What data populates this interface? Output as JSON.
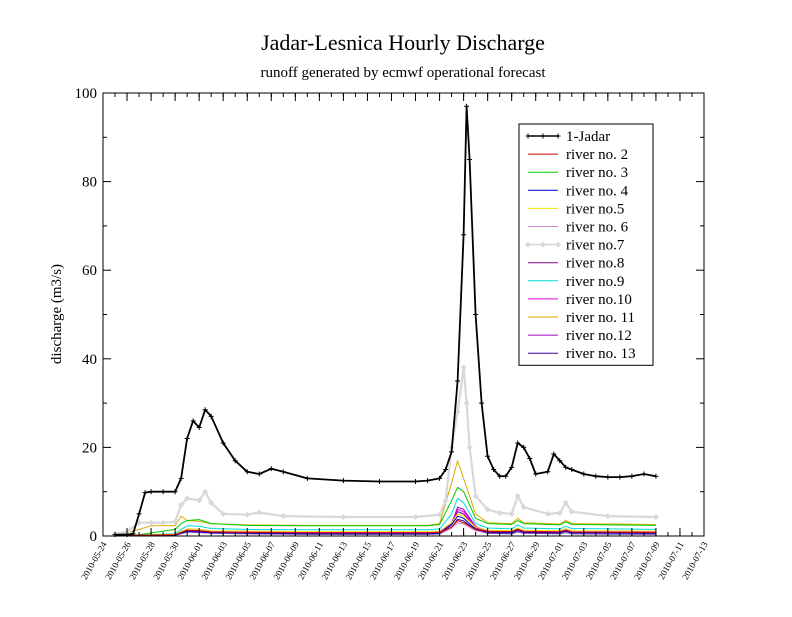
{
  "chart_data": {
    "type": "line",
    "title": "Jadar-Lesnica Hourly Discharge",
    "subtitle": "runoff generated by ecmwf operational forecast",
    "xlabel": "",
    "ylabel": "discharge (m3/s)",
    "xlim": [
      "2010-05-24",
      "2010-07-13"
    ],
    "ylim": [
      0,
      100
    ],
    "yticks": [
      0,
      20,
      40,
      60,
      80,
      100
    ],
    "xtick_labels": [
      "2010-05-24",
      "2010-05-26",
      "2010-05-28",
      "2010-05-30",
      "2010-06-01",
      "2010-06-03",
      "2010-06-05",
      "2010-06-07",
      "2010-06-09",
      "2010-06-11",
      "2010-06-13",
      "2010-06-15",
      "2010-06-17",
      "2010-06-19",
      "2010-06-21",
      "2010-06-23",
      "2010-06-25",
      "2010-06-27",
      "2010-06-29",
      "2010-07-01",
      "2010-07-03",
      "2010-07-05",
      "2010-07-07",
      "2010-07-09",
      "2010-07-11",
      "2010-07-13"
    ],
    "grid": false,
    "legend_position": "top-right",
    "series": [
      {
        "name": "1-Jadar",
        "color": "#000000",
        "marker": "plus",
        "x": [
          "2010-05-25",
          "2010-05-26",
          "2010-05-26 12:00",
          "2010-05-27",
          "2010-05-27 12:00",
          "2010-05-28",
          "2010-05-29",
          "2010-05-30",
          "2010-05-30 12:00",
          "2010-05-31",
          "2010-05-31 12:00",
          "2010-06-01",
          "2010-06-01 12:00",
          "2010-06-02",
          "2010-06-03",
          "2010-06-04",
          "2010-06-05",
          "2010-06-06",
          "2010-06-07",
          "2010-06-08",
          "2010-06-10",
          "2010-06-13",
          "2010-06-16",
          "2010-06-19",
          "2010-06-20",
          "2010-06-21",
          "2010-06-21 12:00",
          "2010-06-22",
          "2010-06-22 12:00",
          "2010-06-23",
          "2010-06-23 06:00",
          "2010-06-23 12:00",
          "2010-06-24",
          "2010-06-24 12:00",
          "2010-06-25",
          "2010-06-25 12:00",
          "2010-06-26",
          "2010-06-26 12:00",
          "2010-06-27",
          "2010-06-27 12:00",
          "2010-06-28",
          "2010-06-28 12:00",
          "2010-06-29",
          "2010-06-30",
          "2010-06-30 12:00",
          "2010-07-01",
          "2010-07-01 12:00",
          "2010-07-02",
          "2010-07-03",
          "2010-07-04",
          "2010-07-05",
          "2010-07-06",
          "2010-07-07",
          "2010-07-08",
          "2010-07-09"
        ],
        "y": [
          0.3,
          0.3,
          0.5,
          5,
          9.8,
          10,
          10,
          10,
          13,
          22,
          26,
          24.5,
          28.5,
          27,
          21,
          17,
          14.5,
          14,
          15.2,
          14.5,
          13,
          12.5,
          12.3,
          12.3,
          12.5,
          13,
          15,
          19,
          35,
          68,
          97,
          85,
          50,
          30,
          18,
          15,
          13.5,
          13.5,
          15.5,
          21,
          20,
          17.5,
          14,
          14.5,
          18.5,
          17,
          15.5,
          15,
          14,
          13.5,
          13.3,
          13.3,
          13.5,
          14,
          13.5
        ]
      },
      {
        "name": "river no. 2",
        "color": "#cc0000",
        "marker": "none",
        "x": [
          "2010-05-25",
          "2010-05-27",
          "2010-05-30",
          "2010-05-30 12:00",
          "2010-05-31",
          "2010-06-01",
          "2010-06-02",
          "2010-06-05",
          "2010-06-10",
          "2010-06-20",
          "2010-06-21",
          "2010-06-22",
          "2010-06-22 12:00",
          "2010-06-23",
          "2010-06-24",
          "2010-06-25",
          "2010-06-27",
          "2010-06-27 12:00",
          "2010-06-28",
          "2010-07-01",
          "2010-07-01 12:00",
          "2010-07-02",
          "2010-07-09"
        ],
        "y": [
          0,
          0.2,
          0.3,
          0.8,
          1.3,
          1.2,
          0.9,
          0.8,
          0.7,
          0.7,
          0.8,
          2,
          3.5,
          3,
          1.5,
          1,
          1,
          1.5,
          1,
          0.9,
          1.3,
          0.9,
          0.8
        ]
      },
      {
        "name": "river no. 3",
        "color": "#00cc00",
        "marker": "none",
        "x": [
          "2010-05-25",
          "2010-05-27",
          "2010-05-30",
          "2010-05-30 12:00",
          "2010-05-31",
          "2010-06-01",
          "2010-06-02",
          "2010-06-05",
          "2010-06-10",
          "2010-06-20",
          "2010-06-21",
          "2010-06-22",
          "2010-06-22 12:00",
          "2010-06-23",
          "2010-06-24",
          "2010-06-25",
          "2010-06-27",
          "2010-06-27 12:00",
          "2010-06-28",
          "2010-07-01",
          "2010-07-01 12:00",
          "2010-07-02",
          "2010-07-09"
        ],
        "y": [
          0,
          0.3,
          1.5,
          2.8,
          3.5,
          3.7,
          2.8,
          2.4,
          2.3,
          2.3,
          2.6,
          8,
          11,
          10,
          4,
          2.8,
          2.6,
          3.5,
          2.8,
          2.5,
          3.2,
          2.6,
          2.4
        ]
      },
      {
        "name": "river no. 4",
        "color": "#0000cc",
        "marker": "none",
        "x": [
          "2010-05-25",
          "2010-05-27",
          "2010-05-30",
          "2010-05-30 12:00",
          "2010-05-31",
          "2010-06-01",
          "2010-06-02",
          "2010-06-05",
          "2010-06-10",
          "2010-06-20",
          "2010-06-21",
          "2010-06-22",
          "2010-06-22 12:00",
          "2010-06-23",
          "2010-06-24",
          "2010-06-25",
          "2010-06-27",
          "2010-06-27 12:00",
          "2010-06-28",
          "2010-07-01",
          "2010-07-01 12:00",
          "2010-07-02",
          "2010-07-09"
        ],
        "y": [
          0,
          0.1,
          0.2,
          0.6,
          1,
          0.9,
          0.7,
          0.6,
          0.5,
          0.5,
          0.6,
          2.5,
          4.5,
          4,
          1.5,
          0.8,
          0.7,
          1.2,
          0.8,
          0.7,
          1.1,
          0.7,
          0.6
        ]
      },
      {
        "name": "river no.5",
        "color": "#f0e000",
        "marker": "none",
        "x": [
          "2010-05-25",
          "2010-05-27",
          "2010-05-30",
          "2010-05-30 12:00",
          "2010-05-31",
          "2010-06-01",
          "2010-06-02",
          "2010-06-05",
          "2010-06-10",
          "2010-06-20",
          "2010-06-21",
          "2010-06-22",
          "2010-06-22 12:00",
          "2010-06-23",
          "2010-06-24",
          "2010-06-25",
          "2010-06-27",
          "2010-06-27 12:00",
          "2010-06-28",
          "2010-07-01",
          "2010-07-01 12:00",
          "2010-07-02",
          "2010-07-09"
        ],
        "y": [
          0,
          0.2,
          0.4,
          1,
          1.6,
          1.5,
          1.2,
          1.1,
          1,
          1,
          1.1,
          3,
          5,
          4.5,
          2,
          1.3,
          1.2,
          1.8,
          1.3,
          1.2,
          1.6,
          1.2,
          1.1
        ]
      },
      {
        "name": "river no. 6",
        "color": "#cc88cc",
        "marker": "none",
        "x": [
          "2010-05-25",
          "2010-05-27",
          "2010-05-30",
          "2010-05-30 12:00",
          "2010-05-31",
          "2010-06-01",
          "2010-06-02",
          "2010-06-05",
          "2010-06-10",
          "2010-06-20",
          "2010-06-21",
          "2010-06-22",
          "2010-06-22 12:00",
          "2010-06-23",
          "2010-06-24",
          "2010-06-25",
          "2010-06-27",
          "2010-06-27 12:00",
          "2010-06-28",
          "2010-07-01",
          "2010-07-01 12:00",
          "2010-07-02",
          "2010-07-09"
        ],
        "y": [
          0,
          0.1,
          0.2,
          0.5,
          0.9,
          0.8,
          0.6,
          0.5,
          0.5,
          0.5,
          0.6,
          1.8,
          3,
          2.7,
          1.2,
          0.7,
          0.6,
          1,
          0.7,
          0.6,
          0.9,
          0.6,
          0.5
        ]
      },
      {
        "name": "river no.7",
        "color": "#d8d8d8",
        "marker": "diamond",
        "x": [
          "2010-05-25",
          "2010-05-26",
          "2010-05-27",
          "2010-05-28",
          "2010-05-29",
          "2010-05-30",
          "2010-05-30 12:00",
          "2010-05-31",
          "2010-06-01",
          "2010-06-01 12:00",
          "2010-06-02",
          "2010-06-03",
          "2010-06-05",
          "2010-06-06",
          "2010-06-08",
          "2010-06-13",
          "2010-06-19",
          "2010-06-21",
          "2010-06-21 12:00",
          "2010-06-22",
          "2010-06-22 12:00",
          "2010-06-23",
          "2010-06-23 06:00",
          "2010-06-23 12:00",
          "2010-06-24",
          "2010-06-25",
          "2010-06-26",
          "2010-06-27",
          "2010-06-27 12:00",
          "2010-06-28",
          "2010-06-30",
          "2010-07-01",
          "2010-07-01 12:00",
          "2010-07-02",
          "2010-07-05",
          "2010-07-09"
        ],
        "y": [
          0.5,
          1,
          3,
          3,
          3,
          3.2,
          7,
          8.5,
          8,
          10,
          7.5,
          5,
          4.8,
          5.3,
          4.5,
          4.3,
          4.3,
          4.8,
          8,
          20,
          28,
          38,
          30,
          20,
          9,
          6,
          5.2,
          5,
          9,
          6.5,
          5,
          5.2,
          7.5,
          5.5,
          4.5,
          4.3
        ]
      },
      {
        "name": "river no.8",
        "color": "#880088",
        "marker": "none",
        "x": [
          "2010-05-25",
          "2010-05-27",
          "2010-05-30",
          "2010-05-30 12:00",
          "2010-05-31",
          "2010-06-01",
          "2010-06-02",
          "2010-06-05",
          "2010-06-10",
          "2010-06-20",
          "2010-06-21",
          "2010-06-22",
          "2010-06-22 12:00",
          "2010-06-23",
          "2010-06-24",
          "2010-06-25",
          "2010-06-27",
          "2010-06-27 12:00",
          "2010-06-28",
          "2010-07-01",
          "2010-07-01 12:00",
          "2010-07-02",
          "2010-07-09"
        ],
        "y": [
          0,
          0.1,
          0.2,
          0.6,
          1.2,
          1.1,
          0.8,
          0.7,
          0.6,
          0.6,
          0.7,
          2.5,
          5.5,
          5,
          1.8,
          0.9,
          0.8,
          1.3,
          0.9,
          0.8,
          1.2,
          0.8,
          0.7
        ]
      },
      {
        "name": "river no.9",
        "color": "#00dddd",
        "marker": "none",
        "x": [
          "2010-05-25",
          "2010-05-27",
          "2010-05-30",
          "2010-05-30 12:00",
          "2010-05-31",
          "2010-06-01",
          "2010-06-02",
          "2010-06-05",
          "2010-06-10",
          "2010-06-20",
          "2010-06-21",
          "2010-06-22",
          "2010-06-22 12:00",
          "2010-06-23",
          "2010-06-24",
          "2010-06-25",
          "2010-06-27",
          "2010-06-27 12:00",
          "2010-06-28",
          "2010-07-01",
          "2010-07-01 12:00",
          "2010-07-02",
          "2010-07-09"
        ],
        "y": [
          0,
          0.2,
          0.5,
          1.5,
          2.3,
          2.2,
          1.7,
          1.5,
          1.4,
          1.4,
          1.6,
          5,
          8.5,
          7.5,
          2.8,
          1.8,
          1.6,
          2.5,
          1.8,
          1.6,
          2.2,
          1.7,
          1.5
        ]
      },
      {
        "name": "river no.10",
        "color": "#ee00ee",
        "marker": "none",
        "x": [
          "2010-05-25",
          "2010-05-27",
          "2010-05-30",
          "2010-05-30 12:00",
          "2010-05-31",
          "2010-06-01",
          "2010-06-02",
          "2010-06-05",
          "2010-06-10",
          "2010-06-20",
          "2010-06-21",
          "2010-06-22",
          "2010-06-22 12:00",
          "2010-06-23",
          "2010-06-24",
          "2010-06-25",
          "2010-06-27",
          "2010-06-27 12:00",
          "2010-06-28",
          "2010-07-01",
          "2010-07-01 12:00",
          "2010-07-02",
          "2010-07-09"
        ],
        "y": [
          0,
          0.1,
          0.3,
          1,
          1.6,
          1.5,
          1.1,
          1,
          0.9,
          0.9,
          1,
          3,
          6,
          5.5,
          2,
          1.2,
          1,
          1.6,
          1.1,
          1,
          1.4,
          1,
          0.9
        ]
      },
      {
        "name": "river no. 11",
        "color": "#ddaa00",
        "marker": "none",
        "x": [
          "2010-05-25",
          "2010-05-27",
          "2010-05-28",
          "2010-05-30",
          "2010-05-30 12:00",
          "2010-05-31",
          "2010-06-01",
          "2010-06-02",
          "2010-06-05",
          "2010-06-10",
          "2010-06-20",
          "2010-06-21",
          "2010-06-22",
          "2010-06-22 12:00",
          "2010-06-23",
          "2010-06-24",
          "2010-06-25",
          "2010-06-27",
          "2010-06-27 12:00",
          "2010-06-28",
          "2010-07-01",
          "2010-07-01 12:00",
          "2010-07-02",
          "2010-07-09"
        ],
        "y": [
          0,
          1.5,
          2.3,
          2.3,
          4.5,
          3.5,
          3.3,
          2.8,
          2.5,
          2.4,
          2.4,
          2.8,
          12,
          17,
          13,
          5,
          3,
          2.8,
          4,
          3,
          2.7,
          3.5,
          2.8,
          2.6
        ]
      },
      {
        "name": "river no.12",
        "color": "#9900bb",
        "marker": "none",
        "x": [
          "2010-05-25",
          "2010-05-27",
          "2010-05-30",
          "2010-05-30 12:00",
          "2010-05-31",
          "2010-06-01",
          "2010-06-02",
          "2010-06-05",
          "2010-06-10",
          "2010-06-20",
          "2010-06-21",
          "2010-06-22",
          "2010-06-22 12:00",
          "2010-06-23",
          "2010-06-24",
          "2010-06-25",
          "2010-06-27",
          "2010-06-27 12:00",
          "2010-06-28",
          "2010-07-01",
          "2010-07-01 12:00",
          "2010-07-02",
          "2010-07-09"
        ],
        "y": [
          0,
          0.1,
          0.2,
          0.7,
          1.3,
          1.2,
          0.9,
          0.8,
          0.7,
          0.7,
          0.8,
          2.8,
          6.5,
          6,
          2.2,
          1,
          0.9,
          1.4,
          1,
          0.9,
          1.3,
          0.9,
          0.8
        ]
      },
      {
        "name": "river no. 13",
        "color": "#330099",
        "marker": "none",
        "x": [
          "2010-05-25",
          "2010-05-27",
          "2010-05-30",
          "2010-05-30 12:00",
          "2010-05-31",
          "2010-06-01",
          "2010-06-02",
          "2010-06-05",
          "2010-06-10",
          "2010-06-20",
          "2010-06-21",
          "2010-06-22",
          "2010-06-22 12:00",
          "2010-06-23",
          "2010-06-24",
          "2010-06-25",
          "2010-06-27",
          "2010-06-27 12:00",
          "2010-06-28",
          "2010-07-01",
          "2010-07-01 12:00",
          "2010-07-02",
          "2010-07-09"
        ],
        "y": [
          0,
          0.1,
          0.2,
          0.5,
          0.9,
          0.8,
          0.6,
          0.5,
          0.4,
          0.4,
          0.5,
          1.8,
          3.8,
          3.4,
          1.3,
          0.6,
          0.5,
          0.9,
          0.6,
          0.5,
          0.8,
          0.5,
          0.4
        ]
      }
    ]
  }
}
